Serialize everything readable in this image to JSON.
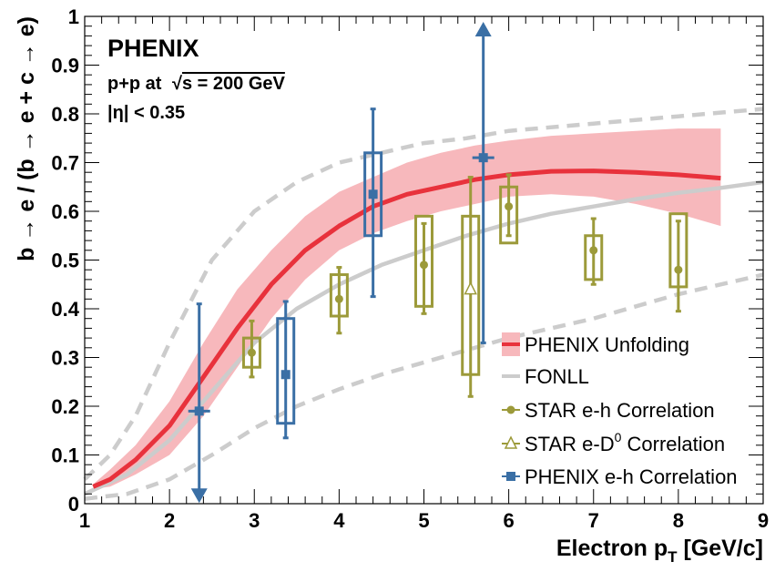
{
  "chart_data": {
    "type": "scatter",
    "xlabel": "Electron p",
    "xlabel_sub": "T",
    "xlabel_unit": " [GeV/c]",
    "ylabel": "b → e / (b → e + c → e)",
    "xlim": [
      1,
      9
    ],
    "ylim": [
      0,
      1
    ],
    "x_ticks": [
      "1",
      "2",
      "3",
      "4",
      "5",
      "6",
      "7",
      "8",
      "9"
    ],
    "y_ticks": [
      "0",
      "0.1",
      "0.2",
      "0.3",
      "0.4",
      "0.5",
      "0.6",
      "0.7",
      "0.8",
      "0.9",
      "1"
    ],
    "annotations": {
      "experiment": "PHENIX",
      "system": "p+p at  √s = 200 GeV",
      "system_prefix": "p+p at ",
      "sqrt_symbol": "√",
      "system_suffix": "s = 200 GeV",
      "eta_cut": "|η| < 0.35"
    },
    "legend": {
      "position": "lower-right",
      "entries": [
        {
          "label": "PHENIX Unfolding",
          "color": "#e8323c"
        },
        {
          "label": "FONLL",
          "color": "#cccccc"
        },
        {
          "label": "STAR e-h Correlation",
          "color": "#9c9a3a"
        },
        {
          "label": "STAR e-D",
          "label_sup": "0",
          "label_suffix": " Correlation",
          "color": "#9c9a3a"
        },
        {
          "label": "PHENIX e-h Correlation",
          "color": "#3a6fa5"
        }
      ]
    },
    "series": [
      {
        "name": "PHENIX Unfolding",
        "kind": "line_band",
        "color": "#e8323c",
        "band_color": "#f7b8bc",
        "x": [
          1.1,
          1.3,
          1.6,
          2.0,
          2.4,
          2.8,
          3.2,
          3.6,
          4.0,
          4.4,
          4.8,
          5.2,
          5.6,
          6.0,
          6.5,
          7.0,
          7.5,
          8.0,
          8.5
        ],
        "y": [
          0.035,
          0.05,
          0.09,
          0.16,
          0.26,
          0.36,
          0.45,
          0.52,
          0.57,
          0.61,
          0.635,
          0.65,
          0.665,
          0.675,
          0.682,
          0.683,
          0.68,
          0.675,
          0.668
        ],
        "low": [
          0.03,
          0.035,
          0.06,
          0.1,
          0.18,
          0.28,
          0.38,
          0.46,
          0.52,
          0.555,
          0.58,
          0.6,
          0.615,
          0.63,
          0.635,
          0.63,
          0.615,
          0.595,
          0.57
        ],
        "high": [
          0.04,
          0.07,
          0.12,
          0.21,
          0.33,
          0.44,
          0.52,
          0.59,
          0.64,
          0.67,
          0.7,
          0.72,
          0.735,
          0.745,
          0.755,
          0.76,
          0.765,
          0.77,
          0.77
        ]
      },
      {
        "name": "FONLL",
        "kind": "line",
        "color": "#cccccc",
        "x": [
          1.0,
          1.5,
          2.0,
          2.5,
          3.0,
          3.5,
          4.0,
          4.5,
          5.0,
          5.5,
          6.0,
          6.5,
          7.0,
          7.5,
          8.0,
          8.5,
          9.0
        ],
        "y": [
          0.02,
          0.06,
          0.13,
          0.23,
          0.33,
          0.4,
          0.45,
          0.49,
          0.52,
          0.55,
          0.575,
          0.595,
          0.61,
          0.625,
          0.638,
          0.648,
          0.66
        ]
      },
      {
        "name": "FONLL upper",
        "kind": "dashed",
        "color": "#cccccc",
        "x": [
          1.0,
          1.3,
          1.6,
          2.0,
          2.5,
          3.0,
          3.5,
          4.0,
          4.5,
          5.0,
          5.5,
          6.0,
          7.0,
          8.0,
          9.0
        ],
        "y": [
          0.05,
          0.1,
          0.18,
          0.33,
          0.5,
          0.6,
          0.66,
          0.7,
          0.72,
          0.74,
          0.75,
          0.765,
          0.78,
          0.795,
          0.81
        ]
      },
      {
        "name": "FONLL lower",
        "kind": "dashed",
        "color": "#cccccc",
        "x": [
          1.0,
          1.5,
          2.0,
          2.5,
          3.0,
          3.5,
          4.0,
          4.5,
          5.0,
          5.5,
          6.0,
          7.0,
          8.0,
          9.0
        ],
        "y": [
          0.01,
          0.02,
          0.05,
          0.1,
          0.155,
          0.2,
          0.235,
          0.265,
          0.29,
          0.315,
          0.34,
          0.38,
          0.43,
          0.47
        ]
      },
      {
        "name": "STAR e-h Correlation",
        "kind": "points",
        "marker": "circle",
        "color": "#9c9a3a",
        "points": [
          {
            "x": 2.97,
            "y": 0.31,
            "elow": 0.26,
            "ehigh": 0.375,
            "syslow": 0.28,
            "syshigh": 0.34
          },
          {
            "x": 4.0,
            "y": 0.42,
            "elow": 0.35,
            "ehigh": 0.485,
            "syslow": 0.385,
            "syshigh": 0.47
          },
          {
            "x": 5.0,
            "y": 0.49,
            "elow": 0.39,
            "ehigh": 0.575,
            "syslow": 0.405,
            "syshigh": 0.59
          },
          {
            "x": 6.0,
            "y": 0.61,
            "elow": 0.55,
            "ehigh": 0.675,
            "syslow": 0.535,
            "syshigh": 0.65
          },
          {
            "x": 7.0,
            "y": 0.52,
            "elow": 0.45,
            "ehigh": 0.585,
            "syslow": 0.46,
            "syshigh": 0.55
          },
          {
            "x": 8.0,
            "y": 0.48,
            "elow": 0.395,
            "ehigh": 0.58,
            "syslow": 0.445,
            "syshigh": 0.595
          }
        ]
      },
      {
        "name": "STAR e-D0 Correlation",
        "kind": "points",
        "marker": "triangle-open",
        "color": "#9c9a3a",
        "points": [
          {
            "x": 5.55,
            "y": 0.44,
            "elow": 0.22,
            "ehigh": 0.67,
            "syslow": 0.265,
            "syshigh": 0.59
          }
        ]
      },
      {
        "name": "PHENIX e-h Correlation",
        "kind": "points",
        "marker": "square",
        "color": "#3a6fa5",
        "points": [
          {
            "x": 2.35,
            "y": 0.19,
            "elow": 0.02,
            "ehigh": 0.41,
            "syslow": 0.19,
            "syshigh": 0.19,
            "arrow_low": true
          },
          {
            "x": 3.37,
            "y": 0.265,
            "elow": 0.135,
            "ehigh": 0.415,
            "syslow": 0.165,
            "syshigh": 0.38
          },
          {
            "x": 4.4,
            "y": 0.635,
            "elow": 0.425,
            "ehigh": 0.81,
            "syslow": 0.55,
            "syshigh": 0.72
          },
          {
            "x": 5.7,
            "y": 0.71,
            "elow": 0.33,
            "ehigh": 0.97,
            "syslow": 0.71,
            "syshigh": 0.71,
            "arrow_high": true
          }
        ]
      }
    ]
  }
}
